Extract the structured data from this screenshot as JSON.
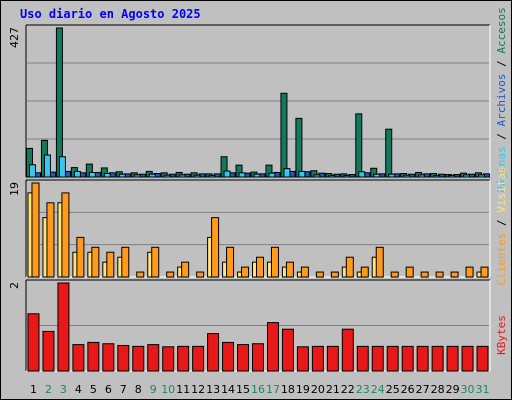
{
  "title": "Uso diario en Agosto 2025",
  "colors": {
    "background": "#c0c0c0",
    "title": "#0000ff",
    "accesos": "#117a5e",
    "paginas": "#34c8f0",
    "archivos": "#1f59c8",
    "visitas": "#ffe47a",
    "clientes": "#ff9a1a",
    "kbytes": "#e81818",
    "weekend_label": "#1a8a5a",
    "grid": "#808080"
  },
  "side_labels": {
    "accesos": "Accesos",
    "archivos": "Archivos",
    "paginas": "Páginas",
    "visitas": "Visitas",
    "clientes": "Clientes",
    "kbytes": "KBytes",
    "separator": " / "
  },
  "chart_data": [
    {
      "type": "bar",
      "panel": "top",
      "ymax_label": "427",
      "ylim": [
        0,
        427
      ],
      "categories": [
        "1",
        "2",
        "3",
        "4",
        "5",
        "6",
        "7",
        "8",
        "9",
        "10",
        "11",
        "12",
        "13",
        "14",
        "15",
        "16",
        "17",
        "18",
        "19",
        "20",
        "21",
        "22",
        "23",
        "24",
        "25",
        "26",
        "27",
        "28",
        "29",
        "30",
        "31"
      ],
      "series": [
        {
          "name": "Accesos",
          "values": [
            82,
            105,
            427,
            27,
            37,
            26,
            15,
            12,
            16,
            12,
            13,
            12,
            9,
            58,
            34,
            14,
            34,
            240,
            168,
            18,
            10,
            9,
            181,
            25,
            137,
            10,
            13,
            10,
            7,
            11,
            12
          ]
        },
        {
          "name": "Archivos",
          "values": [
            12,
            14,
            16,
            12,
            13,
            12,
            9,
            8,
            10,
            8,
            8,
            9,
            9,
            12,
            11,
            9,
            13,
            16,
            15,
            11,
            8,
            7,
            12,
            9,
            9,
            8,
            9,
            8,
            7,
            8,
            9
          ]
        },
        {
          "name": "Páginas",
          "values": [
            35,
            63,
            58,
            16,
            13,
            10,
            8,
            6,
            8,
            5,
            6,
            5,
            4,
            17,
            12,
            8,
            11,
            24,
            16,
            6,
            4,
            4,
            15,
            8,
            8,
            5,
            6,
            4,
            4,
            6,
            6
          ]
        }
      ]
    },
    {
      "type": "bar",
      "panel": "middle",
      "ymax_label": "19",
      "ylim": [
        0,
        19
      ],
      "categories": [
        "1",
        "2",
        "3",
        "4",
        "5",
        "6",
        "7",
        "8",
        "9",
        "10",
        "11",
        "12",
        "13",
        "14",
        "15",
        "16",
        "17",
        "18",
        "19",
        "20",
        "21",
        "22",
        "23",
        "24",
        "25",
        "26",
        "27",
        "28",
        "29",
        "30",
        "31"
      ],
      "series": [
        {
          "name": "Visitas",
          "values": [
            17,
            12,
            15,
            5,
            5,
            3,
            4,
            0,
            5,
            0,
            2,
            0,
            8,
            3,
            1,
            3,
            3,
            2,
            1,
            0,
            0,
            2,
            1,
            4,
            0,
            0,
            0,
            0,
            0,
            0,
            1
          ]
        },
        {
          "name": "Clientes",
          "values": [
            19,
            15,
            17,
            8,
            6,
            5,
            6,
            1,
            6,
            1,
            3,
            1,
            12,
            6,
            2,
            4,
            6,
            3,
            2,
            1,
            1,
            4,
            2,
            6,
            1,
            2,
            1,
            1,
            1,
            2,
            2
          ]
        }
      ]
    },
    {
      "type": "bar",
      "panel": "bottom",
      "ymax_label": "2",
      "ylim": [
        0,
        2
      ],
      "categories": [
        "1",
        "2",
        "3",
        "4",
        "5",
        "6",
        "7",
        "8",
        "9",
        "10",
        "11",
        "12",
        "13",
        "14",
        "15",
        "16",
        "17",
        "18",
        "19",
        "20",
        "21",
        "22",
        "23",
        "24",
        "25",
        "26",
        "27",
        "28",
        "29",
        "30",
        "31"
      ],
      "series": [
        {
          "name": "KBytes",
          "values": [
            1.3,
            0.9,
            2.0,
            0.6,
            0.65,
            0.62,
            0.58,
            0.56,
            0.6,
            0.55,
            0.56,
            0.56,
            0.85,
            0.65,
            0.6,
            0.62,
            1.1,
            0.95,
            0.55,
            0.56,
            0.56,
            0.95,
            0.56,
            0.56,
            0.56,
            0.56,
            0.56,
            0.56,
            0.56,
            0.56,
            0.56
          ]
        }
      ]
    }
  ],
  "x_labels": [
    {
      "text": "1",
      "weekend": false
    },
    {
      "text": "2",
      "weekend": true
    },
    {
      "text": "3",
      "weekend": true
    },
    {
      "text": "4",
      "weekend": false
    },
    {
      "text": "5",
      "weekend": false
    },
    {
      "text": "6",
      "weekend": false
    },
    {
      "text": "7",
      "weekend": false
    },
    {
      "text": "8",
      "weekend": false
    },
    {
      "text": "9",
      "weekend": true
    },
    {
      "text": "10",
      "weekend": true
    },
    {
      "text": "11",
      "weekend": false
    },
    {
      "text": "12",
      "weekend": false
    },
    {
      "text": "13",
      "weekend": false
    },
    {
      "text": "14",
      "weekend": false
    },
    {
      "text": "15",
      "weekend": false
    },
    {
      "text": "16",
      "weekend": true
    },
    {
      "text": "17",
      "weekend": true
    },
    {
      "text": "18",
      "weekend": false
    },
    {
      "text": "19",
      "weekend": false
    },
    {
      "text": "20",
      "weekend": false
    },
    {
      "text": "21",
      "weekend": false
    },
    {
      "text": "22",
      "weekend": false
    },
    {
      "text": "23",
      "weekend": true
    },
    {
      "text": "24",
      "weekend": true
    },
    {
      "text": "25",
      "weekend": false
    },
    {
      "text": "26",
      "weekend": false
    },
    {
      "text": "27",
      "weekend": false
    },
    {
      "text": "28",
      "weekend": false
    },
    {
      "text": "29",
      "weekend": false
    },
    {
      "text": "30",
      "weekend": true
    },
    {
      "text": "31",
      "weekend": true
    }
  ]
}
